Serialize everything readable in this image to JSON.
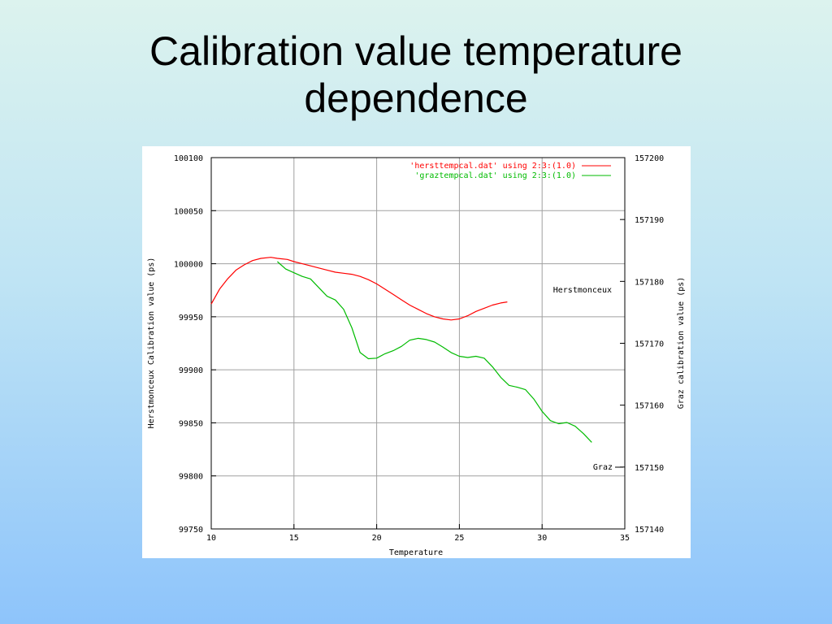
{
  "slide": {
    "title_line1": "Calibration value temperature",
    "title_line2": "dependence"
  },
  "chart_data": {
    "type": "line",
    "title": "",
    "xlabel": "Temperature",
    "ylabel": "Herstmonceux Calibration value (ps)",
    "y2label": "Graz calibration value (ps)",
    "xlim": [
      10,
      35
    ],
    "ylim": [
      99750,
      100100
    ],
    "y2lim": [
      157140,
      157200
    ],
    "x_ticks": [
      10,
      15,
      20,
      25,
      30,
      35
    ],
    "y_ticks": [
      99750,
      99800,
      99850,
      99900,
      99950,
      100000,
      100050,
      100100
    ],
    "y2_ticks": [
      157140,
      157150,
      157160,
      157170,
      157180,
      157190,
      157200
    ],
    "grid": true,
    "legend_position": "top-right",
    "series": [
      {
        "name": "'hersttempcal.dat' using 2:3:(1.0)",
        "axis": "left",
        "color": "#ff0000",
        "label": "Herstmonceux",
        "x": [
          10.0,
          10.5,
          11.0,
          11.5,
          12.0,
          12.5,
          13.0,
          13.6,
          14.0,
          14.6,
          15.0,
          15.5,
          16.0,
          16.5,
          17.0,
          17.5,
          18.0,
          18.5,
          19.0,
          19.5,
          20.0,
          20.5,
          21.0,
          21.5,
          22.0,
          22.5,
          23.0,
          23.5,
          24.0,
          24.5,
          25.0,
          25.5,
          26.0,
          26.5,
          27.0,
          27.5,
          27.9
        ],
        "y": [
          99962,
          99976,
          99986,
          99994,
          99999,
          100003,
          100005,
          100006,
          100005,
          100004,
          100002,
          100000,
          99998,
          99996,
          99994,
          99992,
          99991,
          99990,
          99988,
          99985,
          99981,
          99976,
          99971,
          99966,
          99961,
          99957,
          99953,
          99950,
          99948,
          99947,
          99948,
          99951,
          99955,
          99958,
          99961,
          99963,
          99964
        ]
      },
      {
        "name": "'graztempcal.dat' using 2:3:(1.0)",
        "axis": "right",
        "color": "#00bb00",
        "label": "Graz",
        "x": [
          14.0,
          14.5,
          15.0,
          15.5,
          16.0,
          16.5,
          17.0,
          17.5,
          18.0,
          18.5,
          19.0,
          19.5,
          20.0,
          20.5,
          21.0,
          21.5,
          22.0,
          22.5,
          23.0,
          23.5,
          24.0,
          24.5,
          25.0,
          25.5,
          26.0,
          26.5,
          27.0,
          27.5,
          28.0,
          28.5,
          29.0,
          29.5,
          30.0,
          30.5,
          31.0,
          31.5,
          32.0,
          32.5,
          33.0
        ],
        "y": [
          157183.2,
          157182.0,
          157181.4,
          157180.8,
          157180.4,
          157179.0,
          157177.6,
          157177.0,
          157175.5,
          157172.5,
          157168.5,
          157167.5,
          157167.6,
          157168.3,
          157168.8,
          157169.5,
          157170.5,
          157170.8,
          157170.6,
          157170.2,
          157169.4,
          157168.5,
          157167.9,
          157167.7,
          157167.9,
          157167.6,
          157166.2,
          157164.5,
          157163.2,
          157162.9,
          157162.5,
          157161.0,
          157159.0,
          157157.5,
          157157.0,
          157157.2,
          157156.6,
          157155.4,
          157154.0
        ]
      }
    ]
  }
}
